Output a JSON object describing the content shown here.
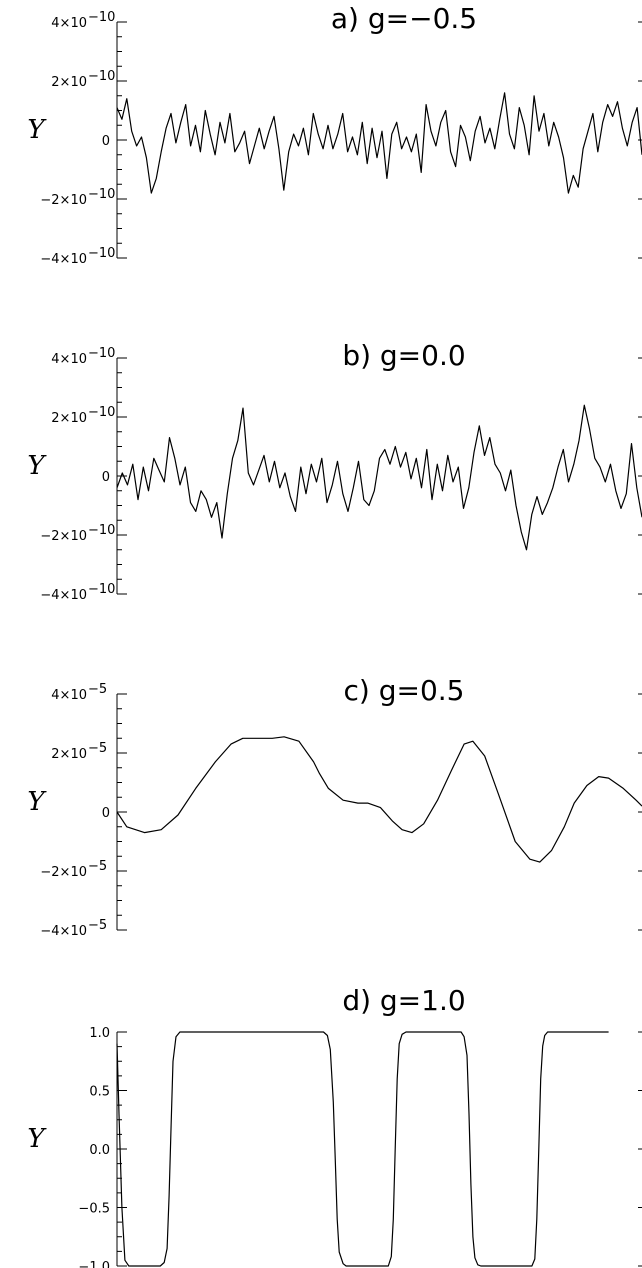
{
  "chart_data": [
    {
      "type": "line",
      "title": "a) g=−0.5",
      "ylabel": "Y",
      "xlabel": "",
      "ylim": [
        -4e-10,
        4e-10
      ],
      "y_ticks": [
        {
          "value": 4e-10,
          "label": "4×10",
          "exp": "−10"
        },
        {
          "value": 2e-10,
          "label": "2×10",
          "exp": "−10"
        },
        {
          "value": 0,
          "label": "0",
          "exp": ""
        },
        {
          "value": -2e-10,
          "label": "−2×10",
          "exp": "−10"
        },
        {
          "value": -4e-10,
          "label": "−4×10",
          "exp": "−10"
        }
      ],
      "series": [
        {
          "values": [
            1.1e-10,
            7e-11,
            1.4e-10,
            3e-11,
            -2e-11,
            1e-11,
            -6e-11,
            -1.8e-10,
            -1.3e-10,
            -4e-11,
            4e-11,
            9e-11,
            -1e-11,
            6e-11,
            1.2e-10,
            -2e-11,
            5e-11,
            -4e-11,
            1e-10,
            2e-11,
            -5e-11,
            6e-11,
            -1e-11,
            9e-11,
            -4e-11,
            -1e-11,
            3e-11,
            -8e-11,
            -2e-11,
            4e-11,
            -3e-11,
            3e-11,
            8e-11,
            -3e-11,
            -1.7e-10,
            -4e-11,
            2e-11,
            -2e-11,
            4e-11,
            -5e-11,
            9e-11,
            2e-11,
            -3e-11,
            5e-11,
            -3e-11,
            2e-11,
            9e-11,
            -4e-11,
            1e-11,
            -5e-11,
            6e-11,
            -8e-11,
            4e-11,
            -6e-11,
            3e-11,
            -1.3e-10,
            2e-11,
            6e-11,
            -3e-11,
            1e-11,
            -4e-11,
            2e-11,
            -1.1e-10,
            1.2e-10,
            3e-11,
            -2e-11,
            6e-11,
            1e-10,
            -4e-11,
            -9e-11,
            5e-11,
            1e-11,
            -7e-11,
            3e-11,
            8e-11,
            -1e-11,
            4e-11,
            -3e-11,
            7e-11,
            1.6e-10,
            2e-11,
            -3e-11,
            1.1e-10,
            5e-11,
            -5e-11,
            1.5e-10,
            3e-11,
            9e-11,
            -2e-11,
            6e-11,
            1e-11,
            -6e-11,
            -1.8e-10,
            -1.2e-10,
            -1.6e-10,
            -3e-11,
            3e-11,
            9e-11,
            -4e-11,
            6e-11,
            1.2e-10,
            8e-11,
            1.3e-10,
            4e-11,
            -2e-11,
            6e-11,
            1.1e-10,
            -5e-11
          ]
        }
      ]
    },
    {
      "type": "line",
      "title": "b) g=0.0",
      "ylabel": "Y",
      "xlabel": "",
      "ylim": [
        -4e-10,
        4e-10
      ],
      "y_ticks": [
        {
          "value": 4e-10,
          "label": "4×10",
          "exp": "−10"
        },
        {
          "value": 2e-10,
          "label": "2×10",
          "exp": "−10"
        },
        {
          "value": 0,
          "label": "0",
          "exp": ""
        },
        {
          "value": -2e-10,
          "label": "−2×10",
          "exp": "−10"
        },
        {
          "value": -4e-10,
          "label": "−4×10",
          "exp": "−10"
        }
      ],
      "series": [
        {
          "values": [
            -4e-11,
            1e-11,
            -3e-11,
            4e-11,
            -8e-11,
            3e-11,
            -5e-11,
            6e-11,
            2e-11,
            -2e-11,
            1.3e-10,
            6e-11,
            -3e-11,
            3e-11,
            -9e-11,
            -1.2e-10,
            -5e-11,
            -8e-11,
            -1.4e-10,
            -9e-11,
            -2.1e-10,
            -6e-11,
            6e-11,
            1.2e-10,
            2.3e-10,
            1e-11,
            -3e-11,
            2e-11,
            7e-11,
            -2e-11,
            5e-11,
            -4e-11,
            1e-11,
            -7e-11,
            -1.2e-10,
            3e-11,
            -6e-11,
            4e-11,
            -2e-11,
            6e-11,
            -9e-11,
            -3e-11,
            5e-11,
            -6e-11,
            -1.2e-10,
            -4e-11,
            5e-11,
            -8e-11,
            -1e-10,
            -5e-11,
            6e-11,
            9e-11,
            4e-11,
            1e-10,
            3e-11,
            8e-11,
            -1e-11,
            6e-11,
            -4e-11,
            9e-11,
            -8e-11,
            4e-11,
            -5e-11,
            7e-11,
            -2e-11,
            3e-11,
            -1.1e-10,
            -4e-11,
            8e-11,
            1.7e-10,
            7e-11,
            1.3e-10,
            4e-11,
            1e-11,
            -5e-11,
            2e-11,
            -1e-10,
            -1.9e-10,
            -2.5e-10,
            -1.3e-10,
            -7e-11,
            -1.3e-10,
            -9e-11,
            -4e-11,
            3e-11,
            9e-11,
            -2e-11,
            4e-11,
            1.2e-10,
            2.4e-10,
            1.6e-10,
            6e-11,
            3e-11,
            -2e-11,
            4e-11,
            -5e-11,
            -1.1e-10,
            -6e-11,
            1.1e-10,
            -4e-11,
            -1.4e-10
          ]
        }
      ]
    },
    {
      "type": "line",
      "title": "c) g=0.5",
      "ylabel": "Y",
      "xlabel": "",
      "ylim": [
        -4e-05,
        4e-05
      ],
      "y_ticks": [
        {
          "value": 4e-05,
          "label": "4×10",
          "exp": "−5"
        },
        {
          "value": 2e-05,
          "label": "2×10",
          "exp": "−5"
        },
        {
          "value": 0,
          "label": "0",
          "exp": ""
        },
        {
          "value": -2e-05,
          "label": "−2×10",
          "exp": "−5"
        },
        {
          "value": -4e-05,
          "label": "−4×10",
          "exp": "−5"
        }
      ],
      "series": [
        {
          "x": [
            0,
            0.1,
            0.28,
            0.45,
            0.62,
            0.8,
            1.0,
            1.16,
            1.28,
            1.42,
            1.58,
            1.7,
            1.85,
            2.0,
            2.06,
            2.15,
            2.3,
            2.45,
            2.55,
            2.68,
            2.8,
            2.9,
            3.0,
            3.12,
            3.26,
            3.4,
            3.53,
            3.62,
            3.74,
            3.88,
            4.05,
            4.2,
            4.3,
            4.42,
            4.55,
            4.65,
            4.78,
            4.9,
            5.0,
            5.15,
            5.28,
            5.34
          ],
          "values": [
            0.0,
            -5e-06,
            -7e-06,
            -6e-06,
            -1e-06,
            8e-06,
            1.7e-05,
            2.3e-05,
            2.5e-05,
            2.5e-05,
            2.5e-05,
            2.55e-05,
            2.4e-05,
            1.7e-05,
            1.3e-05,
            8e-06,
            4e-06,
            3e-06,
            3e-06,
            1.5e-06,
            -3e-06,
            -6e-06,
            -7e-06,
            -4e-06,
            4e-06,
            1.4e-05,
            2.3e-05,
            2.4e-05,
            1.9e-05,
            6e-06,
            -1e-05,
            -1.6e-05,
            -1.7e-05,
            -1.3e-05,
            -5e-06,
            3e-06,
            9e-06,
            1.2e-05,
            1.15e-05,
            8e-06,
            4e-06,
            2e-06
          ]
        }
      ]
    },
    {
      "type": "line",
      "title": "d) g=1.0",
      "ylabel": "Y",
      "xlabel": "",
      "ylim": [
        -1.0,
        1.0
      ],
      "y_ticks": [
        {
          "value": 1.0,
          "label": "1.0",
          "exp": ""
        },
        {
          "value": 0.5,
          "label": "0.5",
          "exp": ""
        },
        {
          "value": 0.0,
          "label": "0.0",
          "exp": ""
        },
        {
          "value": -0.5,
          "label": "−0.5",
          "exp": ""
        },
        {
          "value": -1.0,
          "label": "−1.0",
          "exp": ""
        }
      ],
      "series": [
        {
          "x": [
            0,
            0.02,
            0.05,
            0.08,
            0.12,
            0.16,
            0.2,
            0.44,
            0.48,
            0.51,
            0.53,
            0.55,
            0.57,
            0.6,
            0.64,
            0.67,
            2.1,
            2.14,
            2.17,
            2.2,
            2.22,
            2.24,
            2.26,
            2.3,
            2.33,
            2.35,
            2.76,
            2.79,
            2.81,
            2.83,
            2.85,
            2.87,
            2.9,
            2.94,
            2.97,
            3.5,
            3.53,
            3.56,
            3.58,
            3.6,
            3.62,
            3.64,
            3.67,
            3.7,
            4.22,
            4.25,
            4.27,
            4.29,
            4.31,
            4.33,
            4.35,
            4.38,
            4.42,
            5.0
          ],
          "values": [
            0.9,
            0.3,
            -0.5,
            -0.95,
            -1.0,
            -1.0,
            -1.0,
            -1.0,
            -0.97,
            -0.85,
            -0.4,
            0.2,
            0.75,
            0.96,
            1.0,
            1.0,
            1.0,
            0.97,
            0.85,
            0.4,
            -0.1,
            -0.6,
            -0.88,
            -0.98,
            -1.0,
            -1.0,
            -1.0,
            -0.92,
            -0.6,
            0.0,
            0.6,
            0.9,
            0.98,
            1.0,
            1.0,
            1.0,
            0.96,
            0.8,
            0.3,
            -0.3,
            -0.75,
            -0.93,
            -0.99,
            -1.0,
            -1.0,
            -0.94,
            -0.6,
            0.0,
            0.6,
            0.88,
            0.97,
            1.0,
            1.0,
            1.0
          ]
        }
      ]
    }
  ]
}
